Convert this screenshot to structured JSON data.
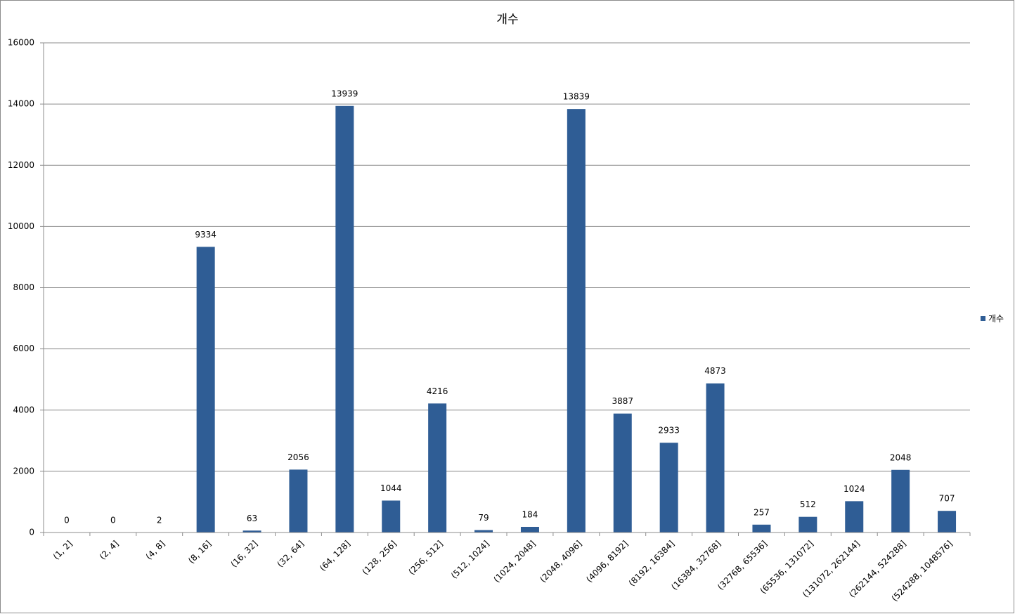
{
  "chart_data": {
    "type": "bar",
    "title": "개수",
    "categories": [
      "(1, 2]",
      "(2, 4]",
      "(4, 8]",
      "(8, 16]",
      "(16, 32]",
      "(32, 64]",
      "(64, 128]",
      "(128, 256]",
      "(256, 512]",
      "(512, 1024]",
      "(1024, 2048]",
      "(2048, 4096]",
      "(4096, 8192]",
      "(8192, 16384]",
      "(16384, 32768]",
      "(32768, 65536]",
      "(65536, 131072]",
      "(131072, 262144]",
      "(262144, 524288]",
      "(524288, 1048576]"
    ],
    "series": [
      {
        "name": "개수",
        "color": "#2f5d95",
        "values": [
          0,
          0,
          2,
          9334,
          63,
          2056,
          13939,
          1044,
          4216,
          79,
          184,
          13839,
          3887,
          2933,
          4873,
          257,
          512,
          1024,
          2048,
          707
        ]
      }
    ],
    "ylim": [
      0,
      16000
    ],
    "yticks": [
      0,
      2000,
      4000,
      6000,
      8000,
      10000,
      12000,
      14000,
      16000
    ],
    "grid": true,
    "legend": "right",
    "data_labels": true
  }
}
